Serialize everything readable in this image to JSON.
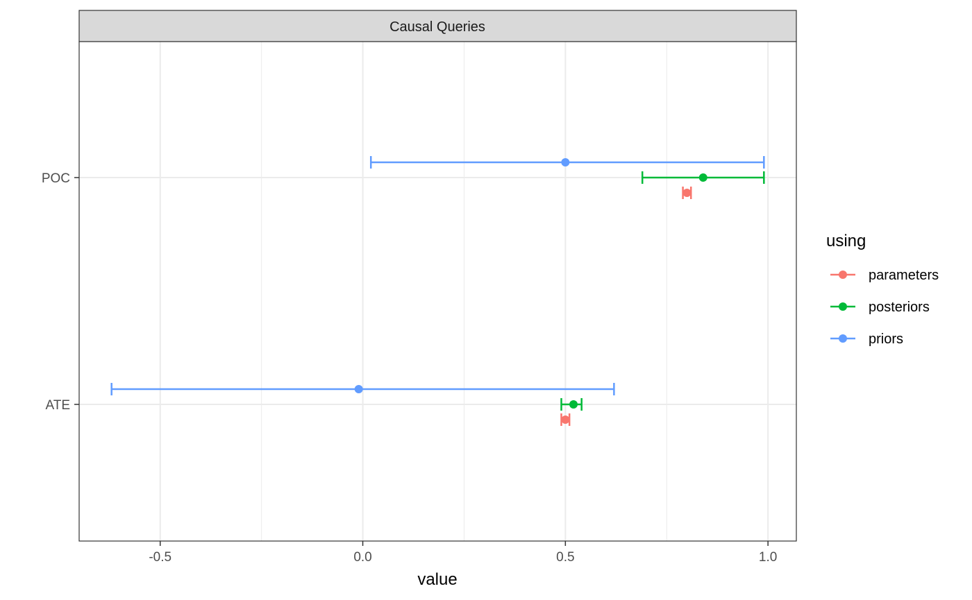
{
  "chart_data": {
    "type": "errorbar-dot",
    "facet_label": "Causal Queries",
    "xlabel": "value",
    "ylabel": "",
    "xlim": [
      -0.7,
      1.07
    ],
    "x_ticks": [
      {
        "value": -0.5,
        "label": "-0.5"
      },
      {
        "value": 0.0,
        "label": "0.0"
      },
      {
        "value": 0.5,
        "label": "0.5"
      },
      {
        "value": 1.0,
        "label": "1.0"
      }
    ],
    "categories": [
      "POC",
      "ATE"
    ],
    "legend": {
      "title": "using",
      "position": "right"
    },
    "grid": true,
    "series": [
      {
        "name": "parameters",
        "color": "#F8766D",
        "points": [
          {
            "query": "POC",
            "mean": 0.8,
            "low": 0.79,
            "high": 0.81
          },
          {
            "query": "ATE",
            "mean": 0.5,
            "low": 0.49,
            "high": 0.51
          }
        ]
      },
      {
        "name": "posteriors",
        "color": "#00BA38",
        "points": [
          {
            "query": "POC",
            "mean": 0.84,
            "low": 0.69,
            "high": 0.99
          },
          {
            "query": "ATE",
            "mean": 0.52,
            "low": 0.49,
            "high": 0.54
          }
        ]
      },
      {
        "name": "priors",
        "color": "#619CFF",
        "points": [
          {
            "query": "POC",
            "mean": 0.5,
            "low": 0.02,
            "high": 0.99
          },
          {
            "query": "ATE",
            "mean": -0.01,
            "low": -0.62,
            "high": 0.62
          }
        ]
      }
    ]
  }
}
